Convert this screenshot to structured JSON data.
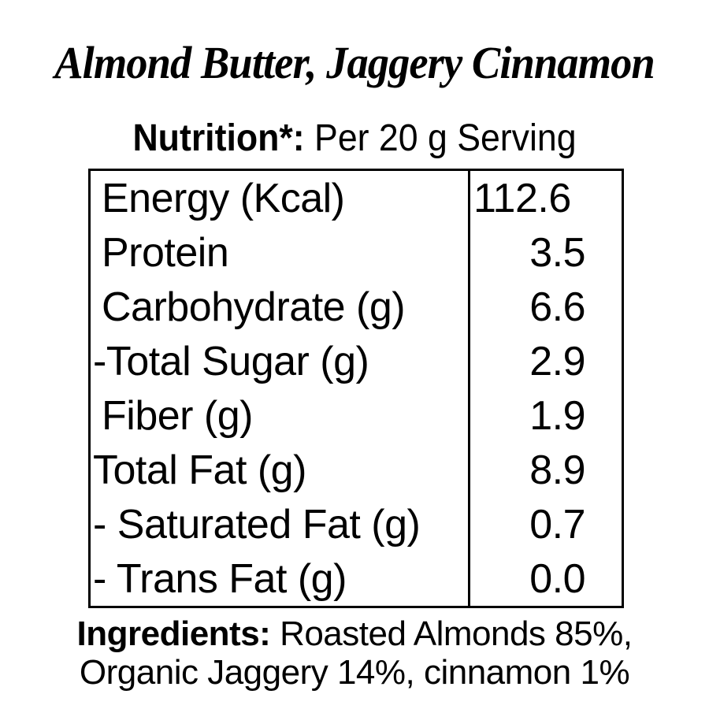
{
  "title": "Almond Butter, Jaggery Cinnamon",
  "subtitle": {
    "label": "Nutrition*:",
    "text": "Per 20 g Serving"
  },
  "table": {
    "rows": [
      {
        "label": "Energy (Kcal)",
        "value": "112.6"
      },
      {
        "label": "Protein",
        "value": "3.5"
      },
      {
        "label": "Carbohydrate (g)",
        "value": "6.6"
      },
      {
        "label": "-Total Sugar (g)",
        "value": "2.9"
      },
      {
        "label": "Fiber (g)",
        "value": "1.9"
      },
      {
        "label": "Total Fat (g)",
        "value": "8.9"
      },
      {
        "label": "- Saturated Fat (g)",
        "value": "0.7"
      },
      {
        "label": "- Trans Fat (g)",
        "value": "0.0"
      }
    ]
  },
  "ingredients": {
    "label": "Ingredients:",
    "line1_rest": "Roasted Almonds 85%,",
    "line2": "Organic Jaggery 14%, cinnamon 1%"
  },
  "colors": {
    "background": "#ffffff",
    "text": "#000000",
    "border": "#000000"
  }
}
